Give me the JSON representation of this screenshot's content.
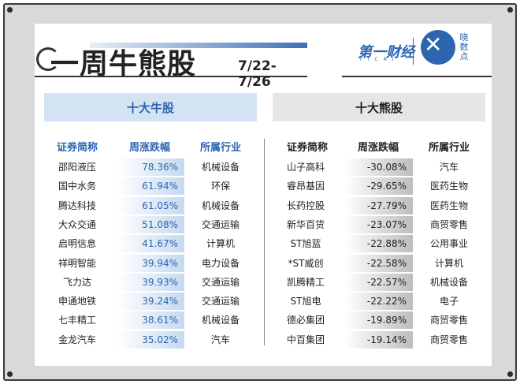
{
  "header": {
    "title": "一周牛熊股",
    "date_range": "7/22-7/26"
  },
  "logo": {
    "brand": "第一财经",
    "brand_sub": "YICAI",
    "sub_brand": "晓数点"
  },
  "bull": {
    "heading": "十大牛股",
    "columns": [
      "证券简称",
      "周涨跌幅",
      "所属行业"
    ],
    "rows": [
      {
        "name": "邵阳液压",
        "change": "78.36%",
        "industry": "机械设备"
      },
      {
        "name": "国中水务",
        "change": "61.94%",
        "industry": "环保"
      },
      {
        "name": "腾达科技",
        "change": "61.05%",
        "industry": "机械设备"
      },
      {
        "name": "大众交通",
        "change": "51.08%",
        "industry": "交通运输"
      },
      {
        "name": "启明信息",
        "change": "41.67%",
        "industry": "计算机"
      },
      {
        "name": "祥明智能",
        "change": "39.94%",
        "industry": "电力设备"
      },
      {
        "name": "飞力达",
        "change": "39.93%",
        "industry": "交通运输"
      },
      {
        "name": "申通地铁",
        "change": "39.24%",
        "industry": "交通运输"
      },
      {
        "name": "七丰精工",
        "change": "38.61%",
        "industry": "机械设备"
      },
      {
        "name": "金龙汽车",
        "change": "35.02%",
        "industry": "汽车"
      }
    ]
  },
  "bear": {
    "heading": "十大熊股",
    "columns": [
      "证券简称",
      "周涨跌幅",
      "所属行业"
    ],
    "rows": [
      {
        "name": "山子高科",
        "change": "-30.08%",
        "industry": "汽车"
      },
      {
        "name": "睿昂基因",
        "change": "-29.65%",
        "industry": "医药生物"
      },
      {
        "name": "长药控股",
        "change": "-27.79%",
        "industry": "医药生物"
      },
      {
        "name": "新华百货",
        "change": "-23.07%",
        "industry": "商贸零售"
      },
      {
        "name": "ST旭蓝",
        "change": "-22.88%",
        "industry": "公用事业"
      },
      {
        "name": "*ST威创",
        "change": "-22.58%",
        "industry": "计算机"
      },
      {
        "name": "凯腾精工",
        "change": "-22.57%",
        "industry": "机械设备"
      },
      {
        "name": "ST旭电",
        "change": "-22.22%",
        "industry": "电子"
      },
      {
        "name": "德必集团",
        "change": "-19.89%",
        "industry": "商贸零售"
      },
      {
        "name": "中百集团",
        "change": "-19.14%",
        "industry": "商贸零售"
      }
    ]
  }
}
